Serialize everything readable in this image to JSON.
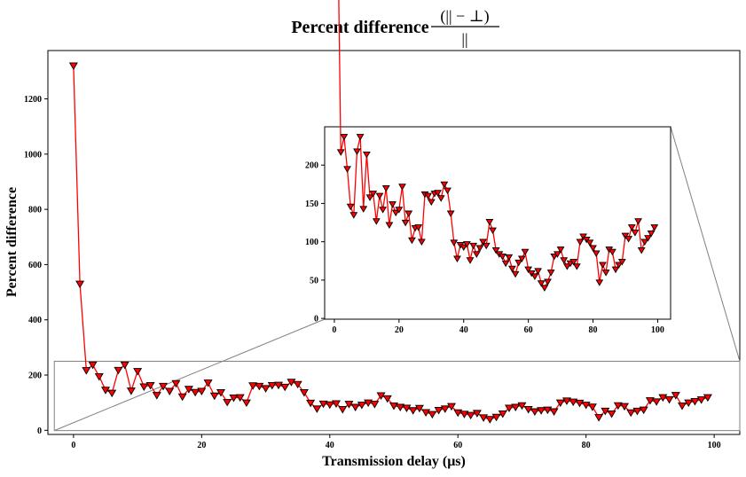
{
  "chart_data": {
    "type": "line",
    "title": "Percent difference",
    "title_fraction": {
      "numerator": "(|| − ⊥)",
      "denominator": "||"
    },
    "xlabel": "Transmission delay (μs)",
    "ylabel": "Percent difference",
    "xlim": [
      -4,
      104
    ],
    "ylim": [
      -15,
      1375
    ],
    "x_ticks": [
      0,
      20,
      40,
      60,
      80,
      100
    ],
    "y_ticks": [
      0,
      200,
      400,
      600,
      800,
      1000,
      1200
    ],
    "grid": false,
    "marker": "downward-triangle",
    "line_color": "#ff0000",
    "marker_fill": "#ff0000",
    "marker_edge": "#000000",
    "series": [
      {
        "x": [
          0,
          1,
          2,
          3,
          4,
          5,
          6,
          7,
          8,
          9,
          10,
          11,
          12,
          13,
          14,
          15,
          16,
          17,
          18,
          19,
          20,
          21,
          22,
          23,
          24,
          25,
          26,
          27,
          28,
          29,
          30,
          31,
          32,
          33,
          34,
          35,
          36,
          37,
          38,
          39,
          40,
          41,
          42,
          43,
          44,
          45,
          46,
          47,
          48,
          49,
          50,
          51,
          52,
          53,
          54,
          55,
          56,
          57,
          58,
          59,
          60,
          61,
          62,
          63,
          64,
          65,
          66,
          67,
          68,
          69,
          70,
          71,
          72,
          73,
          74,
          75,
          76,
          77,
          78,
          79,
          80,
          81,
          82,
          83,
          84,
          85,
          86,
          87,
          88,
          89,
          90,
          91,
          92,
          93,
          94,
          95,
          96,
          97,
          98,
          99
        ],
        "y": [
          1320,
          530,
          217,
          237,
          195,
          146,
          135,
          218,
          237,
          143,
          214,
          158,
          163,
          127,
          160,
          142,
          170,
          122,
          149,
          138,
          142,
          172,
          125,
          137,
          102,
          118,
          119,
          100,
          162,
          160,
          152,
          163,
          164,
          157,
          175,
          167,
          137,
          99,
          78,
          96,
          93,
          97,
          76,
          95,
          84,
          92,
          100,
          95,
          126,
          115,
          89,
          84,
          81,
          72,
          80,
          65,
          58,
          73,
          78,
          87,
          64,
          59,
          55,
          62,
          46,
          40,
          48,
          60,
          81,
          84,
          90,
          76,
          68,
          72,
          74,
          68,
          100,
          107,
          103,
          99,
          92,
          85,
          47,
          70,
          60,
          90,
          87,
          64,
          70,
          74,
          108,
          104,
          119,
          112,
          127,
          89,
          100,
          105,
          111,
          119
        ]
      }
    ],
    "inset": {
      "xlim": [
        -3,
        104
      ],
      "ylim": [
        -1,
        250
      ],
      "x_ticks": [
        0,
        20,
        40,
        60,
        80,
        100
      ],
      "y_ticks": [
        0,
        50,
        100,
        150,
        200
      ]
    }
  }
}
